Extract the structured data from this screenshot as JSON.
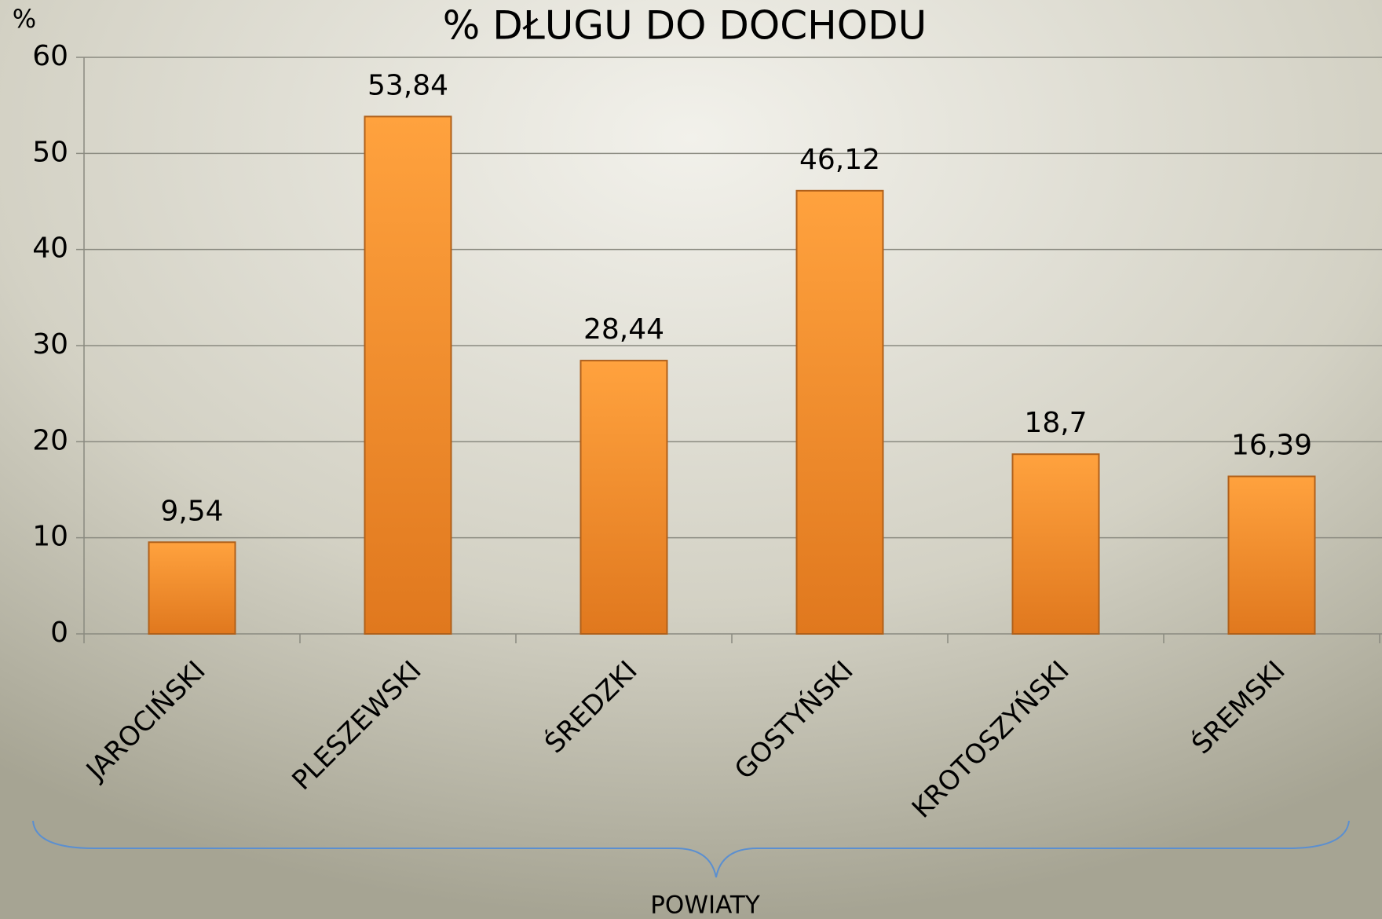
{
  "chart_data": {
    "type": "bar",
    "title": "% DŁUGU DO DOCHODU",
    "y_axis_label": "%",
    "x_axis_label": "POWIATY",
    "categories": [
      "JAROCIŃSKI",
      "PLESZEWSKI",
      "ŚREDZKI",
      "GOSTYŃSKI",
      "KROTOSZYŃSKI",
      "ŚREMSKI"
    ],
    "values": [
      9.54,
      53.84,
      28.44,
      46.12,
      18.7,
      16.39
    ],
    "value_labels": [
      "9,54",
      "53,84",
      "28,44",
      "46,12",
      "18,7",
      "16,39"
    ],
    "color": "#f28c28",
    "ylim": [
      0,
      60
    ],
    "yticks": [
      0,
      10,
      20,
      30,
      40,
      50,
      60
    ],
    "grid": true
  }
}
